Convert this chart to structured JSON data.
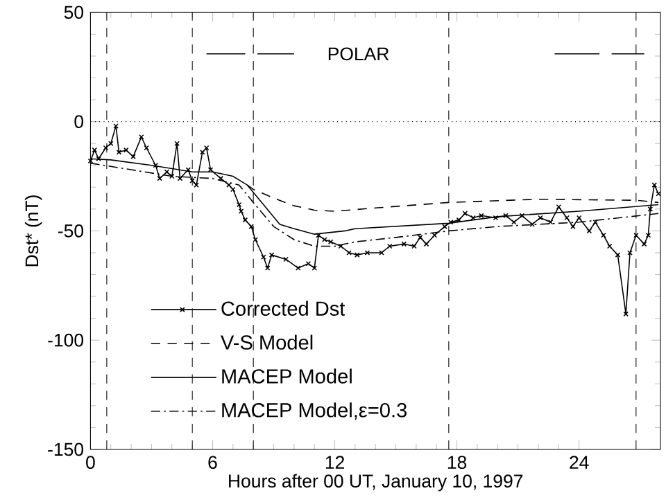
{
  "chart_data": {
    "type": "line",
    "xlabel": "Hours after 00 UT, January 10, 1997",
    "ylabel": "Dst* (nT)",
    "xlim": [
      0,
      28
    ],
    "ylim": [
      -150,
      50
    ],
    "xticks": [
      0,
      6,
      12,
      18,
      24
    ],
    "yticks": [
      -150,
      -100,
      -50,
      0,
      50
    ],
    "legend": "bottom left",
    "annotations": [
      "POLAR"
    ],
    "ref_lines": [
      {
        "axis": "y",
        "value": 0,
        "line_style": "dotted",
        "color": "#000000"
      },
      {
        "axis": "x",
        "value": 0.8,
        "line_style": "dashed",
        "color": "#000000"
      },
      {
        "axis": "x",
        "value": 5,
        "line_style": "dashed",
        "color": "#000000"
      },
      {
        "axis": "x",
        "value": 8,
        "line_style": "dashed",
        "color": "#000000"
      },
      {
        "axis": "x",
        "value": 17.6,
        "line_style": "dashed",
        "color": "#000000"
      },
      {
        "axis": "x",
        "value": 26.8,
        "line_style": "dashed",
        "color": "#000000"
      }
    ],
    "series": [
      {
        "name": "Corrected Dst",
        "color": "#000000",
        "marker": "cross",
        "line_style": "solid",
        "x": [
          0,
          0.2,
          0.4,
          0.75,
          1.0,
          1.25,
          1.4,
          1.75,
          2.1,
          2.5,
          2.75,
          3.2,
          3.4,
          3.75,
          4.0,
          4.25,
          4.4,
          4.8,
          5.0,
          5.2,
          5.5,
          5.7,
          5.9,
          6.4,
          6.8,
          7.0,
          7.3,
          7.4,
          7.6,
          7.9,
          8.1,
          8.5,
          8.7,
          8.9,
          9.6,
          10.2,
          10.7,
          11.0,
          11.2,
          11.5,
          11.8,
          12.3,
          12.7,
          13.1,
          13.6,
          14.3,
          14.7,
          15.4,
          15.9,
          16.2,
          16.5,
          16.9,
          17.4,
          17.7,
          18.1,
          18.4,
          18.8,
          19.2,
          19.9,
          20.4,
          20.8,
          21.2,
          21.7,
          22.1,
          22.6,
          23.0,
          23.4,
          23.7,
          24.0,
          24.5,
          24.8,
          25.2,
          25.5,
          25.9,
          26.3,
          26.5,
          26.8,
          27.2,
          27.4,
          27.5,
          27.7,
          27.9
        ],
        "values": [
          -18,
          -13,
          -17,
          -12,
          -10,
          -2,
          -14,
          -13,
          -16,
          -7,
          -12,
          -20,
          -26,
          -23,
          -25,
          -10,
          -26,
          -22,
          -27,
          -29,
          -14,
          -12,
          -22,
          -26,
          -29,
          -31,
          -38,
          -41,
          -45,
          -48,
          -54,
          -62,
          -67,
          -61,
          -63,
          -67,
          -65,
          -67,
          -52,
          -54,
          -55,
          -57,
          -60,
          -61,
          -60,
          -60,
          -57,
          -56,
          -57,
          -53,
          -56,
          -52,
          -48,
          -46,
          -45,
          -42,
          -44,
          -43,
          -44,
          -43,
          -46,
          -43,
          -47,
          -44,
          -46,
          -39,
          -44,
          -48,
          -44,
          -50,
          -46,
          -52,
          -57,
          -61,
          -88,
          -60,
          -52,
          -56,
          -52,
          -40,
          -29,
          -33
        ]
      },
      {
        "name": "V-S Model",
        "color": "#000000",
        "line_style": "dashed",
        "x": [
          7.7,
          8.0,
          9,
          10,
          11,
          12,
          14,
          17.6,
          22,
          26.8,
          27.9
        ],
        "values": [
          -29,
          -31,
          -35,
          -38.5,
          -40.5,
          -41,
          -39.5,
          -37,
          -35.5,
          -36,
          -37
        ]
      },
      {
        "name": "MACEP Model",
        "color": "#000000",
        "line_style": "solid",
        "x": [
          0,
          1,
          3,
          5,
          6,
          7,
          7.7,
          8.5,
          9.3,
          10,
          11,
          12.5,
          13,
          17.6,
          20,
          24,
          27.9
        ],
        "values": [
          -17,
          -17.5,
          -20,
          -23,
          -23,
          -25,
          -29,
          -38,
          -47,
          -49,
          -51.5,
          -50,
          -49,
          -46.5,
          -43.5,
          -41,
          -38
        ]
      },
      {
        "name": "MACEP Model,ε=0.3",
        "color": "#000000",
        "line_style": "dashdotted",
        "x": [
          0,
          2,
          4,
          6,
          7.3,
          8,
          9,
          10,
          11,
          12,
          13,
          15,
          17.6,
          20,
          24,
          27,
          27.9
        ],
        "values": [
          -19,
          -22,
          -25,
          -26,
          -29,
          -37,
          -48,
          -54,
          -57,
          -57,
          -55,
          -53,
          -50,
          -48,
          -46,
          -43,
          -42
        ]
      },
      {
        "color": "#000000",
        "line_style": "solid",
        "x": [
          5.7,
          7.6,
          7.9,
          8.2,
          10.0,
          16,
          22.8,
          25.0,
          25.3,
          25.6,
          27.2
        ],
        "values": [
          31,
          31,
          null,
          31,
          31,
          null,
          31,
          31,
          null,
          31,
          31
        ]
      }
    ]
  }
}
